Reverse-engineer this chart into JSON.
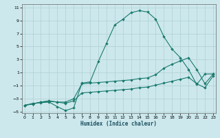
{
  "xlabel": "Humidex (Indice chaleur)",
  "xlim": [
    0,
    23
  ],
  "ylim": [
    -5,
    11
  ],
  "xticks": [
    0,
    1,
    2,
    3,
    4,
    5,
    6,
    7,
    8,
    9,
    10,
    11,
    12,
    13,
    14,
    15,
    16,
    17,
    18,
    19,
    20,
    21,
    22,
    23
  ],
  "yticks": [
    -5,
    -3,
    -1,
    1,
    3,
    5,
    7,
    9,
    11
  ],
  "bg": "#cce8ec",
  "grid_color": "#b0cfd4",
  "lc": "#1a7a6e",
  "line1_x": [
    0,
    1,
    2,
    3,
    4,
    5,
    6,
    7,
    8,
    9,
    10,
    11,
    12,
    13,
    14,
    15,
    16,
    17,
    18,
    19,
    20,
    21,
    22,
    23
  ],
  "line1_y": [
    -4.0,
    -3.7,
    -3.6,
    -3.5,
    -4.2,
    -4.8,
    -4.4,
    -0.6,
    -0.4,
    2.7,
    5.5,
    8.3,
    9.2,
    10.2,
    10.5,
    10.3,
    9.2,
    6.5,
    4.6,
    3.3,
    1.5,
    -0.8,
    0.8,
    0.8
  ],
  "line2_x": [
    0,
    1,
    2,
    3,
    4,
    5,
    6,
    7,
    8,
    9,
    10,
    11,
    12,
    13,
    14,
    15,
    16,
    17,
    18,
    19,
    20,
    21,
    22,
    23
  ],
  "line2_y": [
    -4.0,
    -3.8,
    -3.5,
    -3.4,
    -3.5,
    -3.5,
    -3.0,
    -0.7,
    -0.6,
    -0.5,
    -0.4,
    -0.3,
    -0.2,
    -0.1,
    0.1,
    0.2,
    0.7,
    1.7,
    2.3,
    2.8,
    3.3,
    1.5,
    -0.7,
    0.8
  ],
  "line3_x": [
    0,
    1,
    2,
    3,
    4,
    5,
    6,
    7,
    8,
    9,
    10,
    11,
    12,
    13,
    14,
    15,
    16,
    17,
    18,
    19,
    20,
    21,
    22,
    23
  ],
  "line3_y": [
    -4.0,
    -3.8,
    -3.5,
    -3.3,
    -3.5,
    -3.7,
    -3.3,
    -2.1,
    -2.0,
    -1.9,
    -1.8,
    -1.7,
    -1.6,
    -1.5,
    -1.3,
    -1.2,
    -0.9,
    -0.6,
    -0.3,
    0.0,
    0.3,
    -0.7,
    -1.3,
    0.5
  ]
}
